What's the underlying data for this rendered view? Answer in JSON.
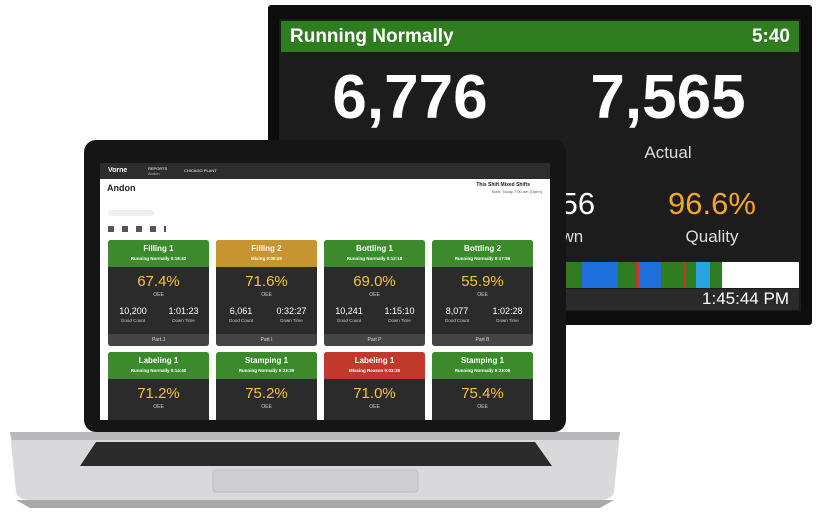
{
  "tv": {
    "status": "Running Normally",
    "time": "5:40",
    "left_value": "6,776",
    "right_value": "7,565",
    "right_label": "Actual",
    "partial_value": ":56",
    "partial_label": "own",
    "quality_value": "96.6%",
    "quality_label": "Quality",
    "clock": "1:45:44 PM"
  },
  "laptop": {
    "brand": "Vorne",
    "nav": "REPORTS",
    "nav_sub": "Andon",
    "plant": "CHICAGO PLANT",
    "page_title": "Andon",
    "shift": "This Shift Mixed Shifts",
    "start": "Start: Today 7:00 am (Open)",
    "tiles": [
      {
        "name": "Filling 1",
        "status": "Running Normally 0:18:42",
        "color": "#3b8a2c",
        "oee": "67.4%",
        "oee_label": "OEE",
        "good_count": "10,200",
        "good_label": "Good Count",
        "down_time": "1:01:23",
        "down_label": "Down Time",
        "part": "Part J"
      },
      {
        "name": "Filling 2",
        "status": "Mixing 0:00:26",
        "color": "#c7952f",
        "oee": "71.6%",
        "oee_label": "OEE",
        "good_count": "6,061",
        "good_label": "Good Count",
        "down_time": "0:32:27",
        "down_label": "Down Time",
        "part": "Part I"
      },
      {
        "name": "Bottling 1",
        "status": "Running Normally 0:12:18",
        "color": "#3b8a2c",
        "oee": "69.0%",
        "oee_label": "OEE",
        "good_count": "10,241",
        "good_label": "Good Count",
        "down_time": "1:15:10",
        "down_label": "Down Time",
        "part": "Part P"
      },
      {
        "name": "Bottling 2",
        "status": "Running Normally 0:17:56",
        "color": "#3b8a2c",
        "oee": "55.9%",
        "oee_label": "OEE",
        "good_count": "8,077",
        "good_label": "Good Count",
        "down_time": "1:02:28",
        "down_label": "Down Time",
        "part": "Part B"
      },
      {
        "name": "Labeling 1",
        "status": "Running Normally 0:14:40",
        "color": "#3b8a2c",
        "oee": "71.2%",
        "oee_label": "OEE"
      },
      {
        "name": "Stamping 1",
        "status": "Running Normally 0:23:30",
        "color": "#3b8a2c",
        "oee": "75.2%",
        "oee_label": "OEE"
      },
      {
        "name": "Labeling 1",
        "status": "Missing Reason 0:03:38",
        "color": "#c0392b",
        "oee": "71.0%",
        "oee_label": "OEE"
      },
      {
        "name": "Stamping 1",
        "status": "Running Normally 0:23:05",
        "color": "#3b8a2c",
        "oee": "75.4%",
        "oee_label": "OEE"
      }
    ]
  }
}
